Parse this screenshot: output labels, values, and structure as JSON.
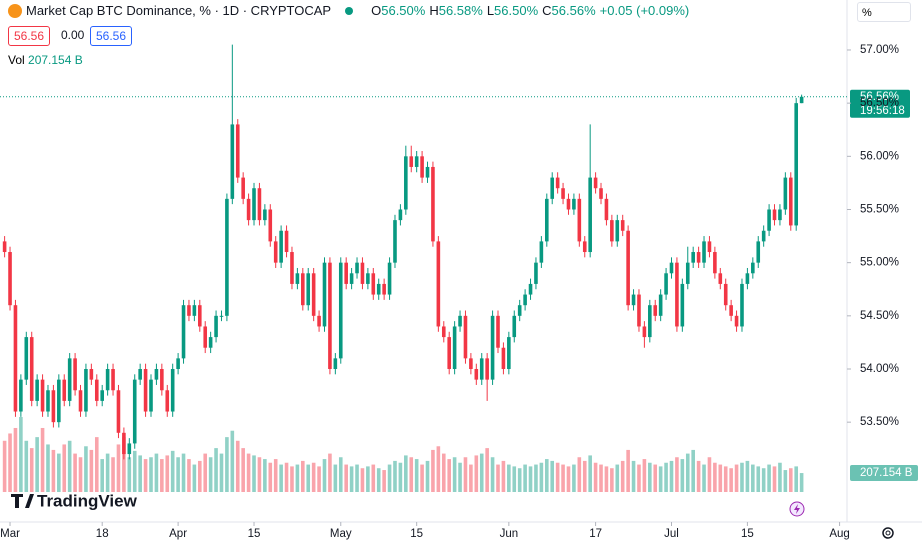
{
  "header": {
    "title": "Market Cap BTC Dominance, % · 1D · CRYPTOCAP",
    "ohlc": [
      {
        "key": "O",
        "value": "56.50%"
      },
      {
        "key": "H",
        "value": "56.58%"
      },
      {
        "key": "L",
        "value": "56.50%"
      },
      {
        "key": "C",
        "value": "56.56%"
      }
    ],
    "change": "+0.05 (+0.09%)",
    "inputs": [
      "56.56",
      "0.00",
      "56.56"
    ],
    "vol_label": "Vol",
    "vol_value": "207.154 B"
  },
  "scale_button": "%",
  "price_tag": "56.56%",
  "countdown": "19:56:18",
  "volume_tag": "207.154 B",
  "brand": "TradingView",
  "chart_data": {
    "type": "candlestick",
    "up_color": "#089981",
    "down_color": "#f23645",
    "grid": false,
    "xlim": [
      -1.85,
      154
    ],
    "ylim": [
      52.58,
      57.47
    ],
    "xticks": [
      {
        "value": 0,
        "label": "Mar"
      },
      {
        "value": 17,
        "label": "18"
      },
      {
        "value": 31,
        "label": "Apr"
      },
      {
        "value": 45,
        "label": "15"
      },
      {
        "value": 61,
        "label": "May"
      },
      {
        "value": 75,
        "label": "15"
      },
      {
        "value": 92,
        "label": "Jun"
      },
      {
        "value": 108,
        "label": "17"
      },
      {
        "value": 122,
        "label": "Jul"
      },
      {
        "value": 136,
        "label": "15"
      },
      {
        "value": 153,
        "label": "Aug"
      }
    ],
    "yticks": [
      {
        "value": 53.5,
        "label": "53.50%"
      },
      {
        "value": 54,
        "label": "54.00%"
      },
      {
        "value": 54.5,
        "label": "54.50%"
      },
      {
        "value": 55,
        "label": "55.00%"
      },
      {
        "value": 55.5,
        "label": "55.50%"
      },
      {
        "value": 56,
        "label": "56.00%"
      },
      {
        "value": 56.5,
        "label": "56.50%"
      },
      {
        "value": 57,
        "label": "57.00%"
      }
    ],
    "x": [
      -1,
      0,
      1,
      2,
      3,
      4,
      5,
      6,
      7,
      8,
      9,
      10,
      11,
      12,
      13,
      14,
      15,
      16,
      17,
      18,
      19,
      20,
      21,
      22,
      23,
      24,
      25,
      26,
      27,
      28,
      29,
      30,
      31,
      32,
      33,
      34,
      35,
      36,
      37,
      38,
      39,
      40,
      41,
      42,
      43,
      44,
      45,
      46,
      47,
      48,
      49,
      50,
      51,
      52,
      53,
      54,
      55,
      56,
      57,
      58,
      59,
      60,
      61,
      62,
      63,
      64,
      65,
      66,
      67,
      68,
      69,
      70,
      71,
      72,
      73,
      74,
      75,
      76,
      77,
      78,
      79,
      80,
      81,
      82,
      83,
      84,
      85,
      86,
      87,
      88,
      89,
      90,
      91,
      92,
      93,
      94,
      95,
      96,
      97,
      98,
      99,
      100,
      101,
      102,
      103,
      104,
      105,
      106,
      107,
      108,
      109,
      110,
      111,
      112,
      113,
      114,
      115,
      116,
      117,
      118,
      119,
      120,
      121,
      122,
      123,
      124,
      125,
      126,
      127,
      128,
      129,
      130,
      131,
      132,
      133,
      134,
      135,
      136,
      137,
      138,
      139,
      140,
      141,
      142,
      143,
      144,
      145,
      146
    ],
    "open": [
      55.2,
      55.1,
      54.6,
      53.6,
      53.9,
      54.3,
      53.7,
      53.9,
      53.6,
      53.8,
      53.5,
      53.9,
      53.7,
      54.1,
      53.8,
      53.6,
      54.0,
      53.9,
      53.7,
      53.8,
      54.0,
      53.8,
      53.4,
      53.2,
      53.3,
      53.9,
      54.0,
      53.6,
      53.9,
      54.0,
      53.8,
      53.6,
      54.0,
      54.1,
      54.6,
      54.5,
      54.6,
      54.4,
      54.2,
      54.3,
      54.5,
      54.5,
      55.6,
      56.3,
      55.8,
      55.6,
      55.4,
      55.7,
      55.4,
      55.5,
      55.2,
      55.0,
      55.3,
      55.1,
      54.8,
      54.9,
      54.6,
      54.9,
      54.5,
      54.4,
      55.0,
      54.0,
      54.1,
      55.0,
      54.8,
      54.9,
      55.0,
      54.8,
      54.9,
      54.7,
      54.8,
      54.7,
      55.0,
      55.4,
      55.5,
      56.0,
      55.9,
      56.0,
      55.8,
      55.9,
      55.2,
      54.4,
      54.3,
      54.0,
      54.4,
      54.5,
      54.1,
      54.0,
      53.9,
      54.1,
      53.9,
      54.5,
      54.2,
      54.0,
      54.3,
      54.5,
      54.6,
      54.7,
      54.8,
      55.0,
      55.2,
      55.6,
      55.8,
      55.7,
      55.6,
      55.5,
      55.6,
      55.2,
      55.1,
      55.8,
      55.7,
      55.6,
      55.4,
      55.2,
      55.4,
      55.3,
      54.6,
      54.7,
      54.4,
      54.3,
      54.6,
      54.5,
      54.7,
      54.9,
      55.0,
      54.4,
      54.8,
      55.0,
      55.1,
      55.0,
      55.2,
      55.1,
      54.9,
      54.8,
      54.6,
      54.5,
      54.4,
      54.8,
      54.9,
      55.0,
      55.2,
      55.3,
      55.5,
      55.4,
      55.5,
      55.8,
      55.35,
      56.5
    ],
    "high": [
      55.25,
      55.15,
      54.65,
      53.95,
      54.35,
      54.35,
      53.95,
      53.95,
      53.85,
      53.85,
      53.95,
      53.95,
      54.15,
      54.15,
      53.85,
      54.05,
      54.05,
      53.95,
      53.85,
      54.05,
      54.05,
      53.85,
      53.45,
      53.35,
      53.95,
      54.05,
      54.05,
      53.95,
      54.05,
      54.05,
      53.85,
      54.05,
      54.15,
      54.65,
      54.65,
      54.65,
      54.65,
      54.45,
      54.35,
      54.55,
      54.55,
      55.65,
      57.05,
      56.35,
      55.85,
      55.65,
      55.75,
      55.75,
      55.55,
      55.55,
      55.25,
      55.35,
      55.35,
      55.15,
      54.95,
      54.95,
      54.95,
      54.95,
      54.55,
      55.05,
      55.05,
      54.15,
      55.05,
      55.05,
      54.95,
      55.05,
      55.05,
      54.95,
      54.95,
      54.85,
      54.85,
      55.05,
      55.45,
      55.55,
      56.1,
      56.1,
      56.05,
      56.05,
      55.95,
      55.95,
      55.25,
      54.45,
      54.35,
      54.45,
      54.55,
      54.55,
      54.15,
      54.05,
      54.15,
      54.15,
      54.55,
      54.55,
      54.25,
      54.35,
      54.55,
      54.65,
      54.75,
      54.85,
      55.05,
      55.25,
      55.65,
      55.85,
      55.85,
      55.75,
      55.65,
      55.65,
      55.65,
      55.25,
      56.3,
      55.85,
      55.75,
      55.65,
      55.45,
      55.45,
      55.45,
      55.35,
      54.75,
      54.75,
      54.45,
      54.65,
      54.65,
      54.75,
      54.95,
      55.05,
      55.05,
      54.85,
      55.15,
      55.15,
      55.15,
      55.25,
      55.25,
      55.15,
      54.95,
      54.85,
      54.65,
      54.55,
      54.85,
      54.95,
      55.05,
      55.25,
      55.35,
      55.55,
      55.55,
      55.55,
      55.85,
      55.85,
      56.55,
      56.58
    ],
    "low": [
      55.05,
      54.55,
      53.55,
      53.55,
      53.85,
      53.65,
      53.65,
      53.55,
      53.55,
      53.45,
      53.45,
      53.65,
      53.65,
      53.75,
      53.55,
      53.55,
      53.85,
      53.65,
      53.65,
      53.75,
      53.75,
      53.35,
      53.15,
      53.15,
      53.25,
      53.85,
      53.55,
      53.55,
      53.85,
      53.75,
      53.55,
      53.55,
      53.95,
      54.05,
      54.45,
      54.45,
      54.35,
      54.15,
      54.15,
      54.25,
      54.45,
      54.45,
      55.55,
      55.75,
      55.55,
      55.35,
      55.35,
      55.35,
      55.35,
      55.15,
      54.95,
      54.95,
      55.05,
      54.75,
      54.75,
      54.55,
      54.55,
      54.45,
      54.35,
      54.35,
      53.95,
      53.95,
      54.05,
      54.75,
      54.75,
      54.85,
      54.75,
      54.75,
      54.65,
      54.65,
      54.65,
      54.65,
      54.95,
      55.35,
      55.45,
      55.85,
      55.85,
      55.75,
      55.75,
      55.15,
      54.35,
      54.25,
      53.95,
      53.95,
      54.35,
      54.05,
      53.95,
      53.85,
      53.85,
      53.7,
      53.85,
      54.15,
      53.95,
      53.95,
      54.25,
      54.45,
      54.55,
      54.65,
      54.75,
      54.95,
      55.15,
      55.55,
      55.65,
      55.55,
      55.45,
      55.45,
      55.15,
      55.05,
      55.05,
      55.65,
      55.55,
      55.35,
      55.15,
      55.15,
      55.25,
      54.55,
      54.55,
      54.35,
      54.2,
      54.25,
      54.45,
      54.45,
      54.65,
      54.85,
      54.35,
      54.35,
      54.75,
      54.95,
      54.95,
      54.95,
      55.05,
      54.85,
      54.75,
      54.55,
      54.45,
      54.35,
      54.35,
      54.75,
      54.85,
      54.95,
      55.15,
      55.25,
      55.35,
      55.35,
      55.45,
      55.3,
      55.3,
      56.5
    ],
    "close": [
      55.1,
      54.6,
      53.6,
      53.9,
      54.3,
      53.7,
      53.9,
      53.6,
      53.8,
      53.5,
      53.9,
      53.7,
      54.1,
      53.8,
      53.6,
      54.0,
      53.9,
      53.7,
      53.8,
      54.0,
      53.8,
      53.4,
      53.2,
      53.3,
      53.9,
      54.0,
      53.6,
      53.9,
      54.0,
      53.8,
      53.6,
      54.0,
      54.1,
      54.6,
      54.5,
      54.6,
      54.4,
      54.2,
      54.3,
      54.5,
      54.5,
      55.6,
      56.3,
      55.8,
      55.6,
      55.4,
      55.7,
      55.4,
      55.5,
      55.2,
      55.0,
      55.3,
      55.1,
      54.8,
      54.9,
      54.6,
      54.9,
      54.5,
      54.4,
      55.0,
      54.0,
      54.1,
      55.0,
      54.8,
      54.9,
      55.0,
      54.8,
      54.9,
      54.7,
      54.8,
      54.7,
      55.0,
      55.4,
      55.5,
      56.0,
      55.9,
      56.0,
      55.8,
      55.9,
      55.2,
      54.4,
      54.3,
      54.0,
      54.4,
      54.5,
      54.1,
      54.0,
      53.9,
      54.1,
      53.9,
      54.5,
      54.2,
      54.0,
      54.3,
      54.5,
      54.6,
      54.7,
      54.8,
      55.0,
      55.2,
      55.6,
      55.8,
      55.7,
      55.6,
      55.5,
      55.6,
      55.2,
      55.1,
      55.8,
      55.7,
      55.6,
      55.4,
      55.2,
      55.4,
      55.3,
      54.6,
      54.7,
      54.4,
      54.3,
      54.6,
      54.5,
      54.7,
      54.9,
      55.0,
      54.4,
      54.8,
      55.0,
      55.1,
      55.0,
      55.2,
      55.1,
      54.9,
      54.8,
      54.6,
      54.5,
      54.4,
      54.8,
      54.9,
      55.0,
      55.2,
      55.3,
      55.5,
      55.4,
      55.5,
      55.8,
      55.35,
      56.5,
      56.56
    ],
    "volume": [
      560,
      640,
      700,
      820,
      560,
      480,
      600,
      700,
      520,
      460,
      420,
      520,
      560,
      420,
      380,
      500,
      460,
      600,
      360,
      420,
      380,
      520,
      600,
      380,
      450,
      400,
      360,
      380,
      420,
      360,
      400,
      450,
      380,
      420,
      360,
      300,
      340,
      420,
      380,
      480,
      420,
      600,
      670,
      560,
      480,
      420,
      400,
      380,
      360,
      320,
      360,
      300,
      320,
      280,
      300,
      340,
      300,
      320,
      280,
      360,
      420,
      300,
      380,
      300,
      280,
      300,
      260,
      280,
      300,
      260,
      240,
      300,
      340,
      320,
      400,
      380,
      360,
      300,
      340,
      460,
      500,
      420,
      360,
      380,
      320,
      380,
      300,
      400,
      420,
      480,
      380,
      300,
      340,
      300,
      280,
      260,
      300,
      280,
      300,
      320,
      360,
      340,
      320,
      300,
      280,
      300,
      380,
      340,
      400,
      320,
      300,
      280,
      260,
      300,
      340,
      460,
      340,
      300,
      360,
      320,
      300,
      280,
      320,
      340,
      380,
      360,
      420,
      460,
      340,
      300,
      380,
      320,
      300,
      280,
      260,
      300,
      320,
      340,
      300,
      280,
      260,
      300,
      280,
      320,
      240,
      260,
      280,
      207.154
    ]
  }
}
